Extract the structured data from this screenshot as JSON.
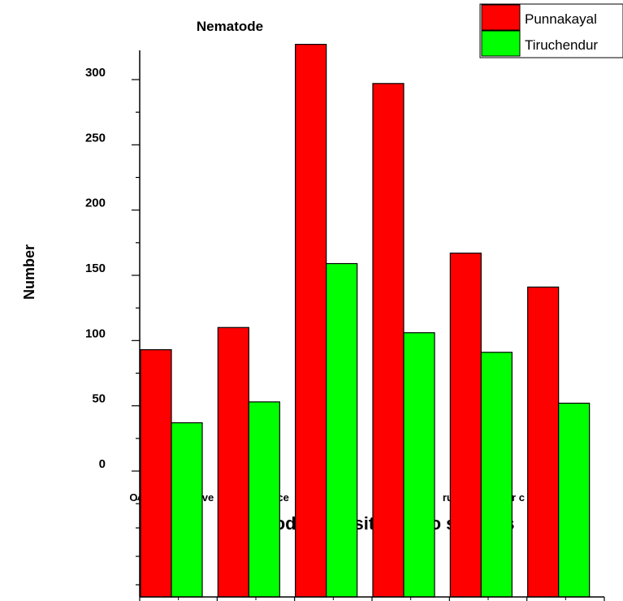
{
  "chart_data": {
    "type": "bar",
    "title": "Nematode",
    "xlabel": "Nematode diversity in two stations",
    "ylabel": "Number",
    "categories": [
      "Oct",
      "Nov",
      "Dec",
      "Jan",
      "Feb",
      "Mar"
    ],
    "category_label_fragments": [
      "Oc",
      "ove",
      "ece",
      "nu",
      "rua",
      "r c"
    ],
    "series": [
      {
        "name": "Punnakayal",
        "color": "#ff0000",
        "values": [
          93,
          110,
          327,
          297,
          167,
          141
        ]
      },
      {
        "name": "Tiruchendur",
        "color": "#00ff00",
        "values": [
          37,
          53,
          159,
          106,
          91,
          52
        ]
      }
    ],
    "ylim": [
      -35,
      335
    ],
    "yticks": [
      0,
      50,
      100,
      150,
      200,
      250,
      300
    ],
    "ytick_labels": [
      "0",
      "50",
      "100",
      "150",
      "200",
      "250",
      "300"
    ],
    "grid": false,
    "legend_position": "top-right"
  }
}
